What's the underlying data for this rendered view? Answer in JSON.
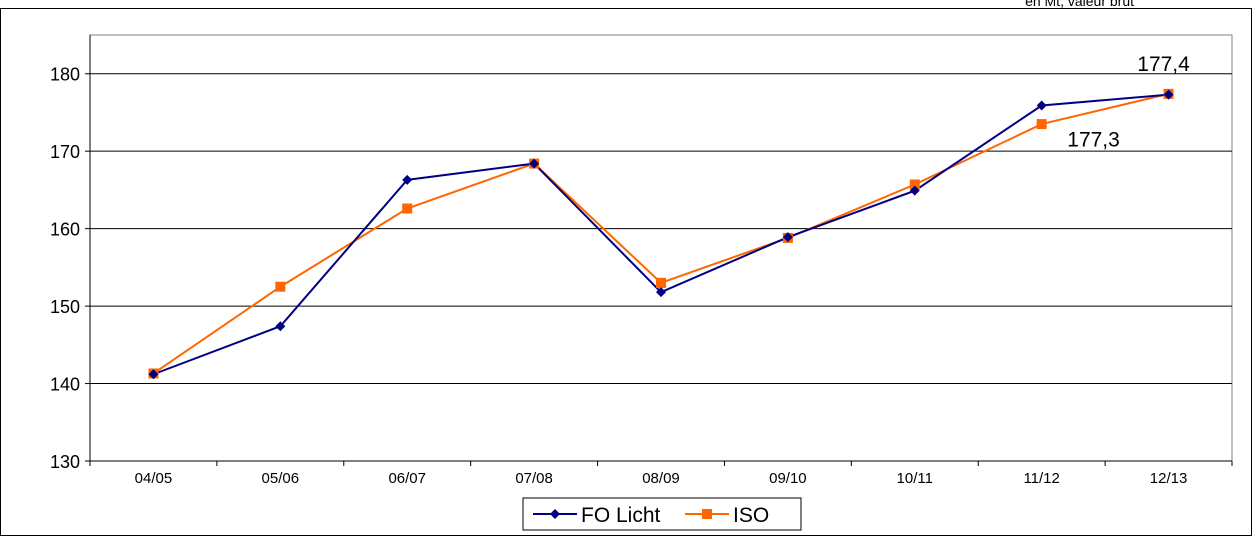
{
  "header_note": "en Mt, valeur brut",
  "chart_data": {
    "type": "line",
    "categories": [
      "04/05",
      "05/06",
      "06/07",
      "07/08",
      "08/09",
      "09/10",
      "10/11",
      "11/12",
      "12/13"
    ],
    "series": [
      {
        "name": "FO Licht",
        "color": "#000080",
        "marker": "diamond",
        "values": [
          141.2,
          147.4,
          166.3,
          168.4,
          151.8,
          158.9,
          164.9,
          175.9,
          177.3
        ]
      },
      {
        "name": "ISO",
        "color": "#FF6600",
        "marker": "square",
        "values": [
          141.3,
          152.5,
          162.6,
          168.4,
          153.0,
          158.8,
          165.7,
          173.5,
          177.4
        ]
      }
    ],
    "ylim": [
      130,
      185
    ],
    "yticks": [
      130,
      140,
      150,
      160,
      170,
      180
    ],
    "grid": true,
    "legend": "bottom-center",
    "annotations": [
      {
        "text": "177,4",
        "series": "ISO",
        "index": 8
      },
      {
        "text": "177,3",
        "series": "FO Licht",
        "index": 8
      }
    ]
  }
}
